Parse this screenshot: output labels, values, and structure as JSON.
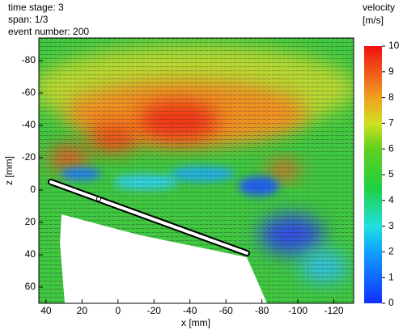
{
  "chart_data": {
    "type": "heatmap",
    "annotations": [
      "time stage: 3",
      "span: 1/3",
      "event number: 200"
    ],
    "xlabel": "x [mm]",
    "ylabel": "z [mm]",
    "xlim": [
      44,
      -131
    ],
    "ylim": [
      -94,
      70
    ],
    "xticks": [
      40,
      20,
      0,
      -20,
      -40,
      -60,
      -80,
      -100,
      -120
    ],
    "yticks": [
      -80,
      -60,
      -40,
      -20,
      0,
      20,
      40,
      60
    ],
    "colorbar": {
      "title": [
        "velocity",
        "[m/s]"
      ],
      "lim": [
        0,
        10
      ],
      "ticks": [
        0,
        1,
        2,
        3,
        4,
        5,
        6,
        7,
        8,
        9,
        10
      ]
    }
  }
}
